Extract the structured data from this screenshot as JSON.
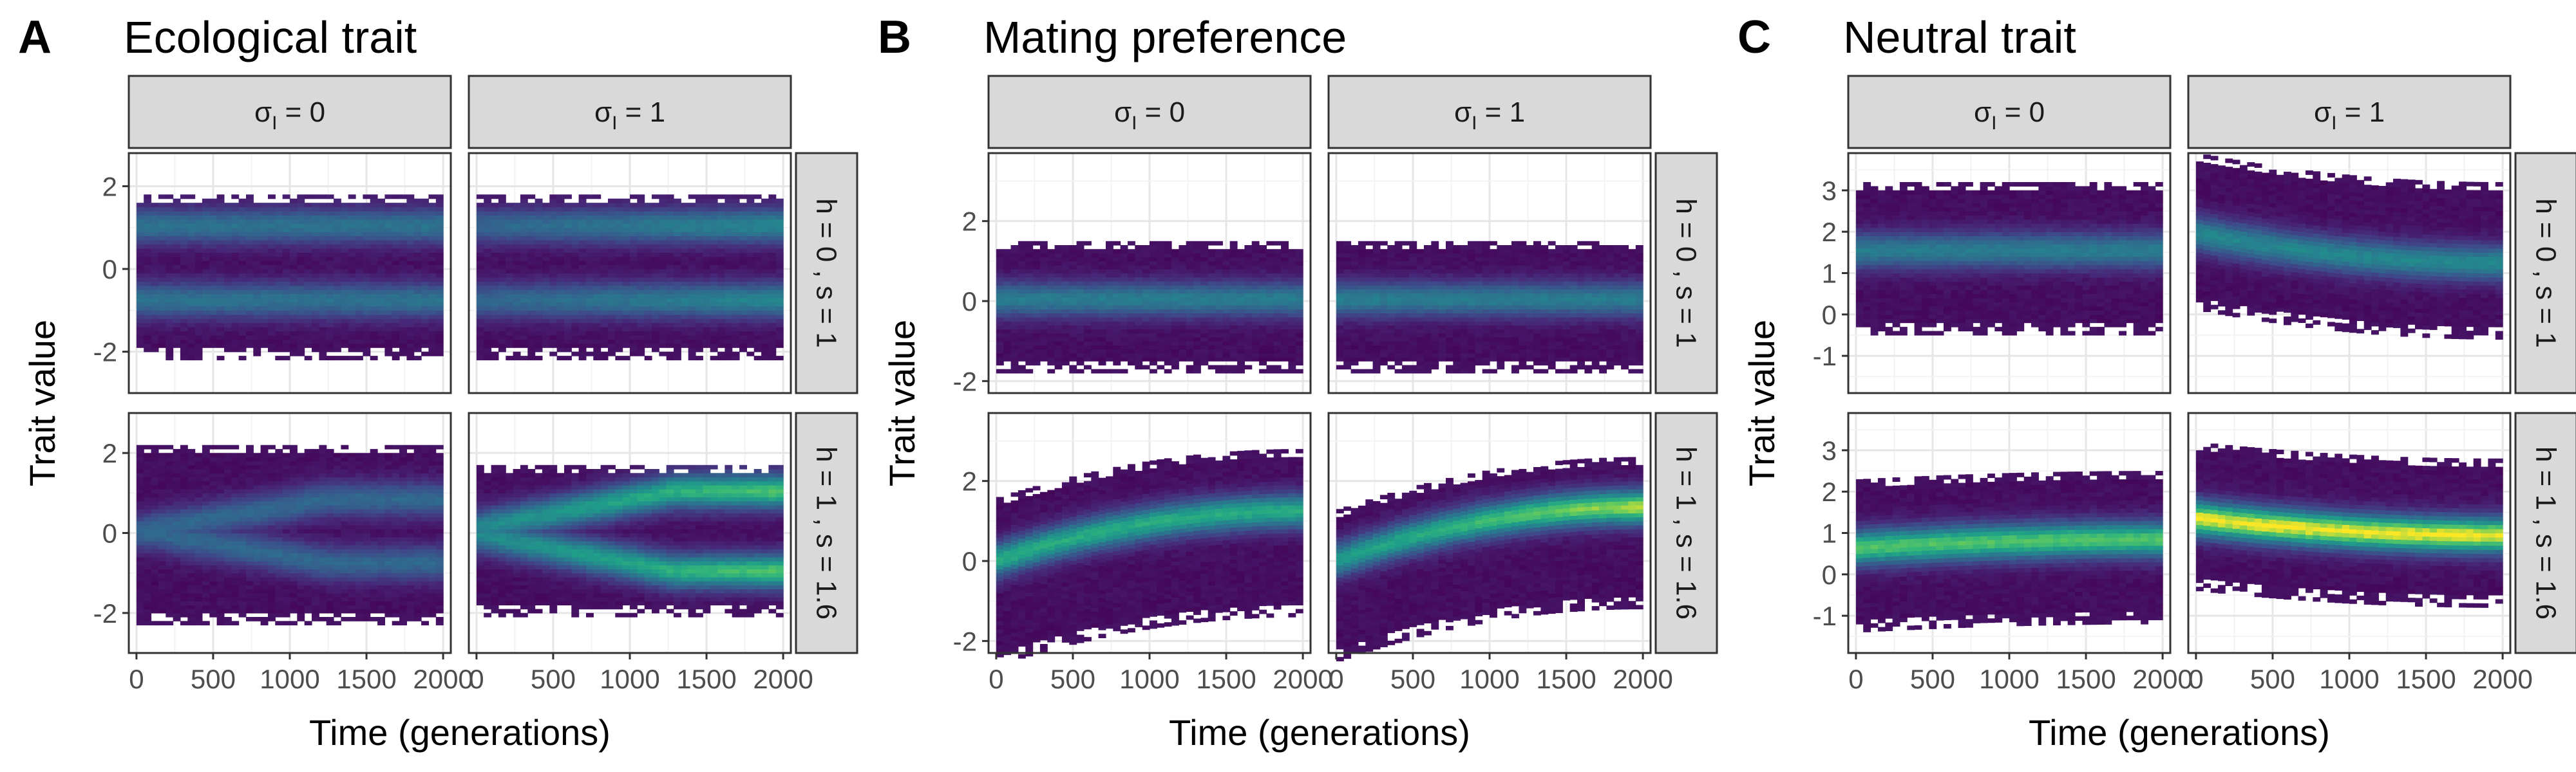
{
  "colors": {
    "background": "#ffffff",
    "panel_bg": "#ffffff",
    "strip_bg": "#d9d9d9",
    "palette": "viridis",
    "low": "#440154",
    "mid": "#21908c",
    "high": "#fde725"
  },
  "strips": {
    "col_0": "σ",
    "col_1": "σ",
    "col_sub": "I",
    "col_0_value": " = 0",
    "col_1_value": " = 1",
    "row_0": "h = 0 ,  s = 1",
    "row_1": "h = 1 ,  s = 1.6"
  },
  "axes": {
    "xlabel": "Time (generations)",
    "ylabel": "Trait value"
  },
  "chart_data": [
    {
      "type": "heatmap",
      "panel": "A",
      "title": "Ecological trait",
      "xlabel": "Time (generations)",
      "ylabel": "Trait value",
      "xlim": [
        -50,
        2050
      ],
      "x_ticks": [
        0,
        500,
        1000,
        1500,
        2000
      ],
      "x_tick_labels": [
        "0",
        "500",
        "1000",
        "1500",
        "2000"
      ],
      "facet_cols": [
        "σI = 0",
        "σI = 1"
      ],
      "facet_rows": [
        "h = 0 , s = 1",
        "h = 1 , s = 1.6"
      ],
      "rows": [
        {
          "ylim": [
            -3.0,
            2.8
          ],
          "y_ticks": [
            -2,
            0,
            2
          ],
          "y_tick_labels": [
            "-2",
            "0",
            "2"
          ],
          "panels": [
            {
              "facet_col": "σI = 0",
              "lower_edge": -2.2,
              "upper_edge": 1.8,
              "density_peaks": [
                1.0,
                -0.8
              ],
              "peak_intensity": 0.45,
              "trend": "two parallel bands, stable over time"
            },
            {
              "facet_col": "σI = 1",
              "lower_edge": -2.2,
              "upper_edge": 1.8,
              "density_peaks": [
                1.0,
                -0.8
              ],
              "peak_intensity": 0.55,
              "trend": "two bands, sharpening over time"
            }
          ]
        },
        {
          "ylim": [
            -3.0,
            3.0
          ],
          "y_ticks": [
            -2,
            0,
            2
          ],
          "y_tick_labels": [
            "-2",
            "0",
            "2"
          ],
          "panels": [
            {
              "facet_col": "σI = 0",
              "lower_edge": -2.3,
              "upper_edge": 2.2,
              "density_peaks": [
                0.0
              ],
              "peak_intensity": 0.4,
              "trend": "single band splitting into two faint bands near +0.8 and -0.8"
            },
            {
              "facet_col": "σI = 1",
              "lower_edge": -2.1,
              "upper_edge": 1.7,
              "density_peaks": [
                1.0,
                -1.0
              ],
              "peak_intensity": 0.8,
              "trend": "splits into two bright bands at +1 and -1, brightest after 1500"
            }
          ]
        }
      ]
    },
    {
      "type": "heatmap",
      "panel": "B",
      "title": "Mating preference",
      "xlabel": "Time (generations)",
      "ylabel": "Trait value",
      "xlim": [
        -50,
        2050
      ],
      "x_ticks": [
        0,
        500,
        1000,
        1500,
        2000
      ],
      "x_tick_labels": [
        "0",
        "500",
        "1000",
        "1500",
        "2000"
      ],
      "facet_cols": [
        "σI = 0",
        "σI = 1"
      ],
      "facet_rows": [
        "h = 0 , s = 1",
        "h = 1 , s = 1.6"
      ],
      "rows": [
        {
          "ylim": [
            -2.3,
            3.7
          ],
          "y_ticks": [
            -2,
            0,
            2
          ],
          "y_tick_labels": [
            "-2",
            "0",
            "2"
          ],
          "panels": [
            {
              "facet_col": "σI = 0",
              "lower_edge": -1.8,
              "upper_edge": 1.5,
              "density_peaks": [
                0.0
              ],
              "peak_intensity": 0.5,
              "trend": "single band centred near 0, stable"
            },
            {
              "facet_col": "σI = 1",
              "lower_edge": -1.8,
              "upper_edge": 1.5,
              "density_peaks": [
                0.0
              ],
              "peak_intensity": 0.5,
              "trend": "single band centred near 0, stable"
            }
          ]
        },
        {
          "ylim": [
            -2.3,
            3.7
          ],
          "y_ticks": [
            -2,
            0,
            2
          ],
          "y_tick_labels": [
            "-2",
            "0",
            "2"
          ],
          "panels": [
            {
              "facet_col": "σI = 0",
              "lower_edge": -1.4,
              "upper_edge": 2.8,
              "density_start": 0.0,
              "density_end": 1.2,
              "peak_intensity": 0.7,
              "trend": "band rises from 0 to about 1.2"
            },
            {
              "facet_col": "σI = 1",
              "lower_edge": -1.2,
              "upper_edge": 2.6,
              "density_start": 0.0,
              "density_end": 1.3,
              "peak_intensity": 0.9,
              "trend": "band rises from 0 to about 1.3, brightest around 500-1500"
            }
          ]
        }
      ]
    },
    {
      "type": "heatmap",
      "panel": "C",
      "title": "Neutral trait",
      "xlabel": "Time (generations)",
      "ylabel": "Trait value",
      "xlim": [
        -50,
        2050
      ],
      "x_ticks": [
        0,
        500,
        1000,
        1500,
        2000
      ],
      "x_tick_labels": [
        "0",
        "500",
        "1000",
        "1500",
        "2000"
      ],
      "facet_cols": [
        "σI = 0",
        "σI = 1"
      ],
      "facet_rows": [
        "h = 0 , s = 1",
        "h = 1 , s = 1.6"
      ],
      "rows": [
        {
          "ylim": [
            -1.9,
            3.9
          ],
          "y_ticks": [
            -1,
            0,
            1,
            2,
            3
          ],
          "y_tick_labels": [
            "-1",
            "0",
            "1",
            "2",
            "3"
          ],
          "panels": [
            {
              "facet_col": "σI = 0",
              "lower_edge": -0.5,
              "upper_edge": 3.2,
              "density_start": 1.5,
              "density_end": 1.5,
              "peak_intensity": 0.5,
              "trend": "single band near 1.5, stable"
            },
            {
              "facet_col": "σI = 1",
              "lower_edge": -0.6,
              "upper_edge": 3.2,
              "density_start": 1.9,
              "density_end": 1.2,
              "peak_intensity": 0.55,
              "trend": "single band drifting down from about 1.9 to 1.2"
            }
          ]
        },
        {
          "ylim": [
            -1.9,
            3.9
          ],
          "y_ticks": [
            -1,
            0,
            1,
            2,
            3
          ],
          "y_tick_labels": [
            "-1",
            "0",
            "1",
            "2",
            "3"
          ],
          "panels": [
            {
              "facet_col": "σI = 0",
              "lower_edge": -1.2,
              "upper_edge": 2.5,
              "density_start": 0.6,
              "density_end": 0.8,
              "peak_intensity": 0.8,
              "trend": "bright band near 0.6-0.8, stable"
            },
            {
              "facet_col": "σI = 1",
              "lower_edge": -0.8,
              "upper_edge": 2.8,
              "density_start": 1.3,
              "density_end": 0.9,
              "peak_intensity": 0.95,
              "trend": "bright band drifting down from about 1.3 to 0.9"
            }
          ]
        }
      ]
    }
  ]
}
